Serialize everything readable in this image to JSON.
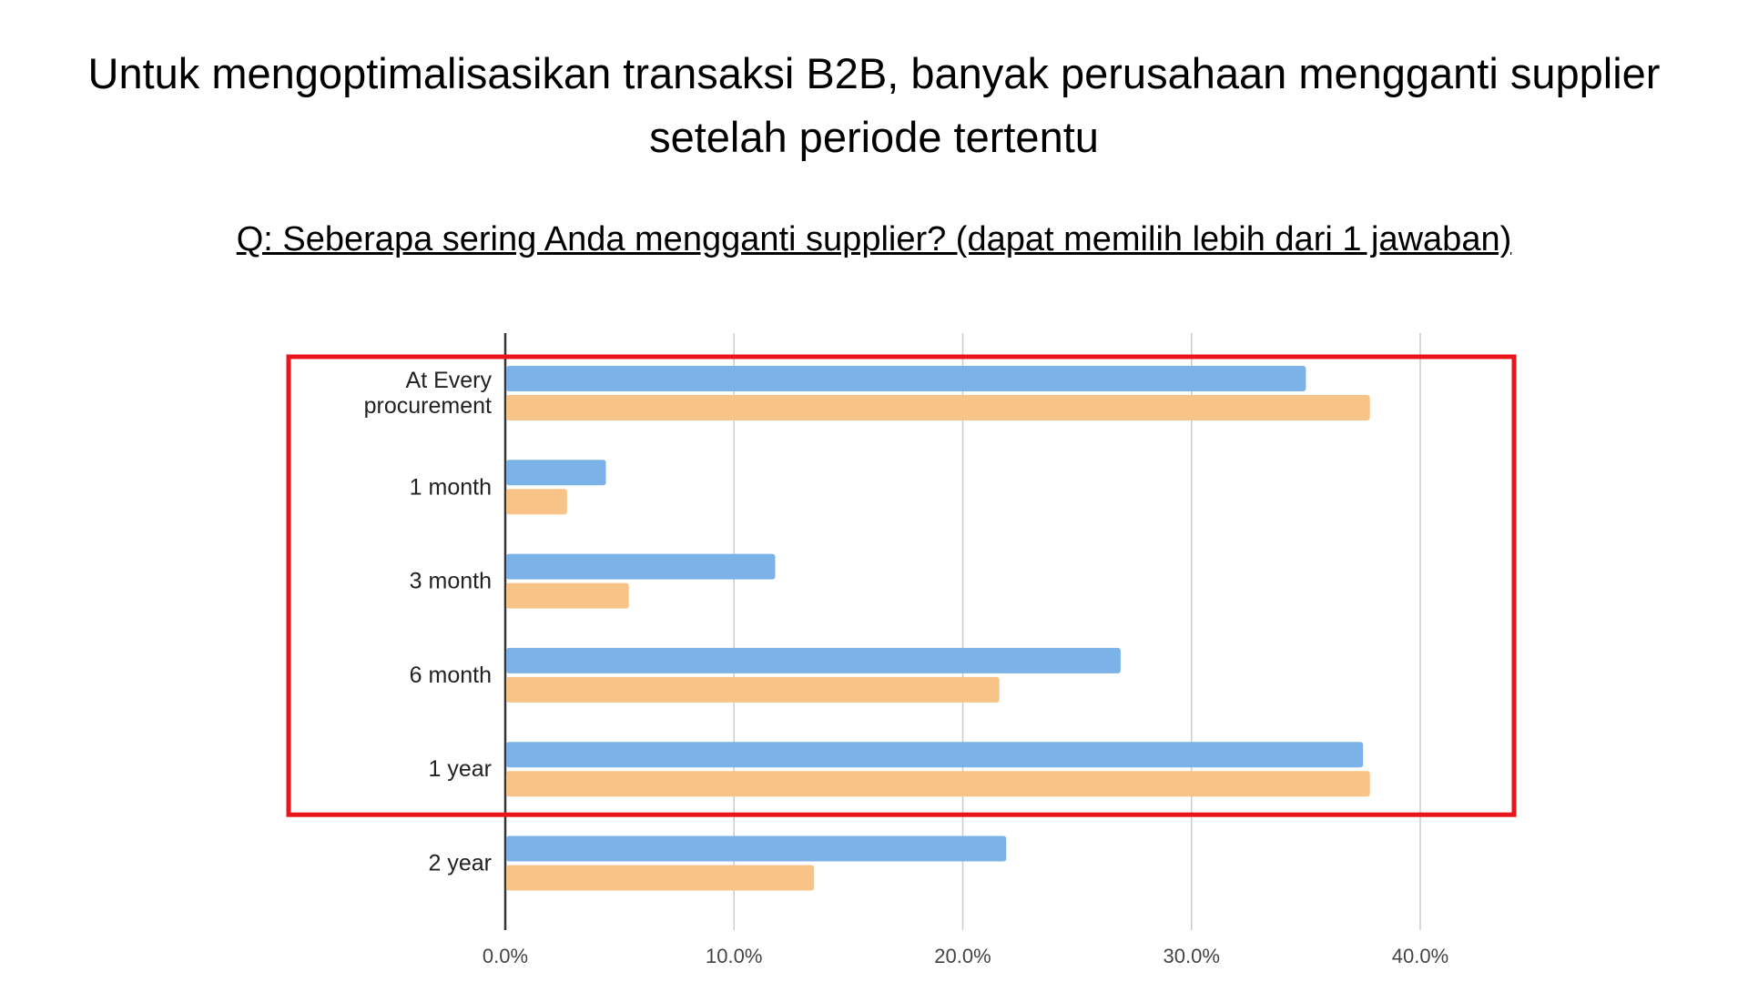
{
  "title_line1": "Untuk mengoptimalisasikan transaksi B2B, banyak perusahaan mengganti supplier",
  "title_line2": "setelah periode tertentu",
  "question": "Q: Seberapa sering Anda mengganti supplier? (dapat memilih lebih dari 1 jawaban)",
  "colors": {
    "series1": "#7bb3e8",
    "series2": "#f8c386",
    "highlight_box": "#e8161b",
    "grid": "#cccccc",
    "axis": "#333333"
  },
  "chart_data": {
    "type": "bar",
    "orientation": "horizontal",
    "categories": [
      "At Every procurement",
      "1 month",
      "3 month",
      "6 month",
      "1 year",
      "2 year"
    ],
    "category_lines": [
      [
        "At Every",
        "procurement"
      ],
      [
        "1 month"
      ],
      [
        "3 month"
      ],
      [
        "6 month"
      ],
      [
        "1 year"
      ],
      [
        "2 year"
      ]
    ],
    "series": [
      {
        "values": [
          35.0,
          4.4,
          11.8,
          26.9,
          37.5,
          21.9
        ],
        "color": "#7bb3e8"
      },
      {
        "values": [
          37.8,
          2.7,
          5.4,
          21.6,
          37.8,
          13.5
        ],
        "color": "#f8c386"
      }
    ],
    "xlim": [
      0,
      40
    ],
    "x_ticks": [
      "0.0%",
      "10.0%",
      "20.0%",
      "30.0%",
      "40.0%"
    ],
    "grid": true,
    "highlighted_categories": [
      "At Every procurement",
      "1 month",
      "3 month",
      "6 month",
      "1 year"
    ]
  }
}
